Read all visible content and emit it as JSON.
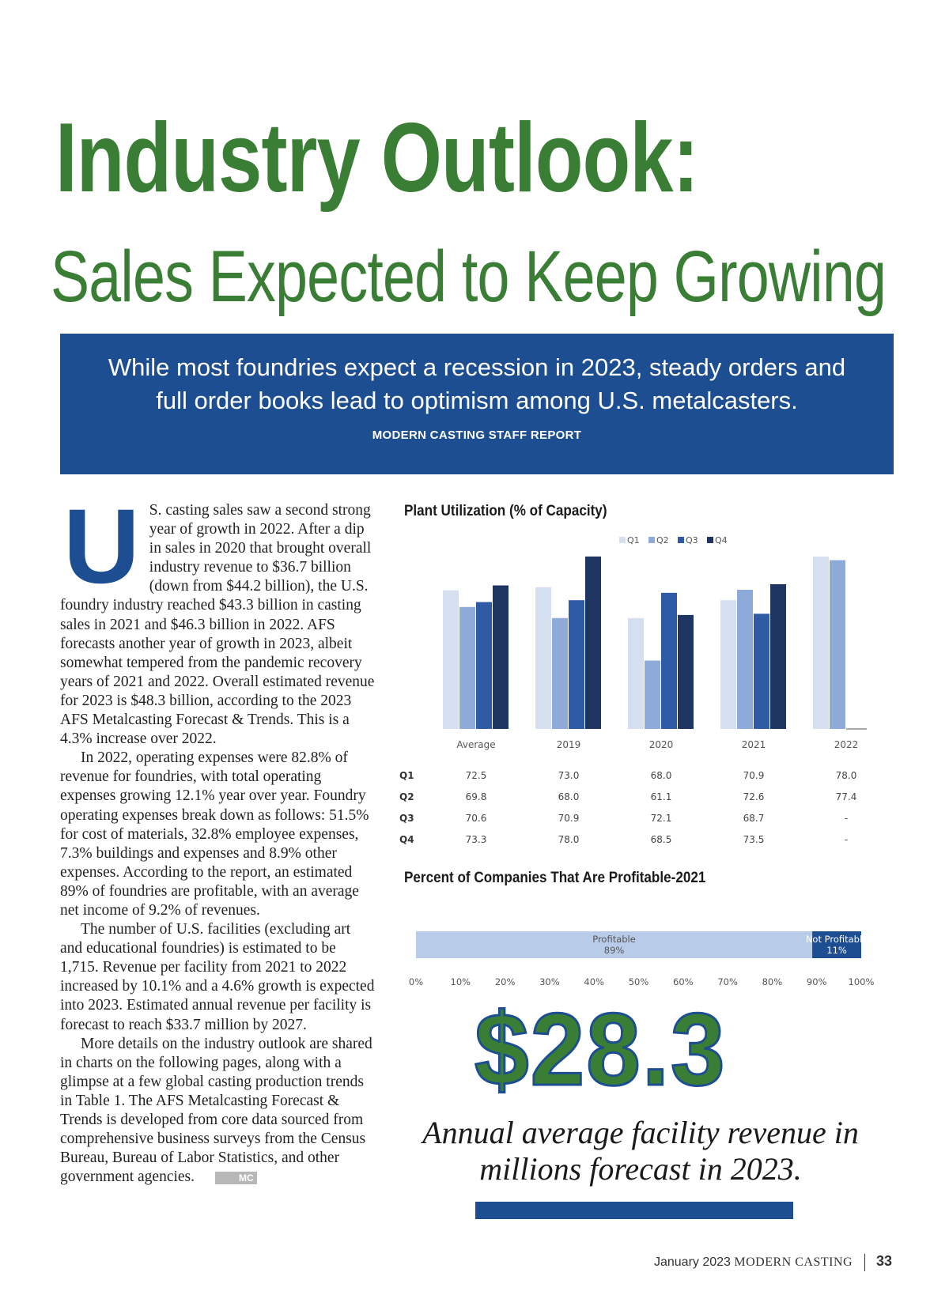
{
  "header": {
    "title": "Industry Outlook:",
    "subtitle": "Sales Expected to Keep Growing"
  },
  "banner": {
    "deck": "While most foundries expect a recession in 2023, steady orders and full order books lead to optimism among U.S. metalcasters.",
    "byline": "MODERN CASTING STAFF REPORT"
  },
  "article": {
    "drop_cap": "U",
    "paragraphs": [
      "S. casting sales saw a second strong year of growth in 2022. After a dip in sales in 2020 that brought overall industry revenue to $36.7 billion (down from $44.2 billion), the U.S. foundry industry reached $43.3 billion in casting sales in 2021 and $46.3 billion in 2022. AFS forecasts another year of growth in 2023, albeit somewhat tempered from the pandemic recovery years of 2021 and 2022. Overall estimated revenue for 2023 is $48.3 billion, according to the 2023 AFS Metalcasting Forecast & Trends. This is a 4.3% increase over 2022.",
      "In 2022, operating expenses were 82.8% of revenue for foundries, with total operating expenses growing 12.1% year over year. Foundry operating expenses break down as follows: 51.5% for cost of materials, 32.8% employee expenses, 7.3% buildings and expenses and 8.9% other expenses. According to the report, an estimated 89% of foundries are profitable, with an average net income of 9.2% of revenues.",
      "The number of U.S. facilities (excluding art and educational foundries) is estimated to be 1,715. Revenue per facility from 2021 to 2022 increased by 10.1% and a 4.6% growth is expected into 2023. Estimated annual revenue per facility is forecast to reach $33.7 million by 2027.",
      "More details on the industry outlook are shared in charts on the following pages, along with a glimpse at a few global casting production trends in Table 1. The AFS Metalcasting Forecast & Trends is developed from core data sourced from comprehensive business surveys from the Census Bureau, Bureau of Labor Statistics, and other government agencies."
    ],
    "end_mark": "MC"
  },
  "chart_data": [
    {
      "type": "bar",
      "title": "Plant Utilization (% of Capacity)",
      "categories": [
        "Average",
        "2019",
        "2020",
        "2021",
        "2022"
      ],
      "series": [
        {
          "name": "Q1",
          "values": [
            72.5,
            73.0,
            68.0,
            70.9,
            78.0
          ],
          "labels": [
            "72.5",
            "73.0",
            "68.0",
            "70.9",
            "78.0"
          ],
          "color": "#d5dff0"
        },
        {
          "name": "Q2",
          "values": [
            69.8,
            68.0,
            61.1,
            72.6,
            77.4
          ],
          "labels": [
            "69.8",
            "68.0",
            "61.1",
            "72.6",
            "77.4"
          ],
          "color": "#8eaad8"
        },
        {
          "name": "Q3",
          "values": [
            70.6,
            70.9,
            72.1,
            68.7,
            null
          ],
          "labels": [
            "70.6",
            "70.9",
            "72.1",
            "68.7",
            "-"
          ],
          "color": "#2e5aa6"
        },
        {
          "name": "Q4",
          "values": [
            73.3,
            78.0,
            68.5,
            73.5,
            null
          ],
          "labels": [
            "73.3",
            "78.0",
            "68.5",
            "73.5",
            "-"
          ],
          "color": "#1d3560"
        }
      ],
      "legend": "top-right",
      "grid": false,
      "data_table": true
    },
    {
      "type": "bar",
      "orientation": "horizontal-stacked",
      "title": "Percent of Companies That Are Profitable-2021",
      "segments": [
        {
          "name": "Profitable",
          "value": 89,
          "label": "89%",
          "color": "#b8cce9"
        },
        {
          "name": "Not Profitable",
          "value": 11,
          "label": "11%",
          "color": "#1c4e91"
        }
      ],
      "x_ticks": [
        "0%",
        "10%",
        "20%",
        "30%",
        "40%",
        "50%",
        "60%",
        "70%",
        "80%",
        "90%",
        "100%"
      ],
      "xlim": [
        0,
        100
      ],
      "grid": false
    }
  ],
  "callout": {
    "value": "$28.3",
    "caption": "Annual average facility revenue in millions forecast in 2023.",
    "color": "#3a7d35",
    "bar_color": "#1c4e91"
  },
  "footer": {
    "date": "January 2023",
    "magazine": "MODERN CASTING",
    "page": "33"
  }
}
